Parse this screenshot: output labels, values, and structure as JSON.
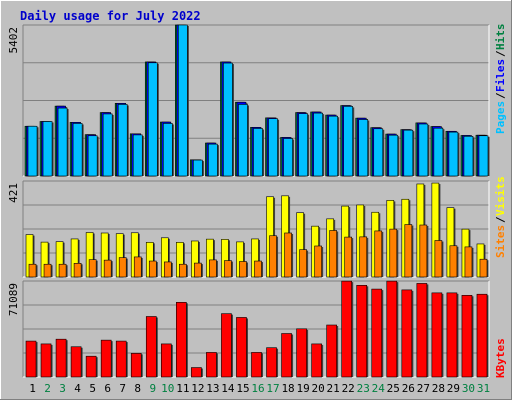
{
  "title": "Daily usage for July 2022",
  "colors": {
    "frame": "#c0c0c0",
    "plot_bg": "#c0c0c0",
    "title": "#0000cc",
    "hits": "#008040",
    "files": "#0000ff",
    "pages": "#00c0ff",
    "visits": "#ffff00",
    "sites": "#ff8000",
    "kbytes": "#ff0000",
    "weekend_day": "#008040",
    "weekday": "#000000"
  },
  "right_labels": {
    "top": [
      "Pages",
      "/",
      "Files",
      "/",
      "Hits"
    ],
    "middle": [
      "Sites",
      "/",
      "Visits"
    ],
    "bottom": [
      "KBytes"
    ]
  },
  "chart_data": {
    "type": "bar",
    "title": "Daily usage for July 2022",
    "categories": [
      "1",
      "2",
      "3",
      "4",
      "5",
      "6",
      "7",
      "8",
      "9",
      "10",
      "11",
      "12",
      "13",
      "14",
      "15",
      "16",
      "17",
      "18",
      "19",
      "20",
      "21",
      "22",
      "23",
      "24",
      "25",
      "26",
      "27",
      "28",
      "29",
      "30",
      "31"
    ],
    "weekend_days": [
      "2",
      "3",
      "9",
      "10",
      "16",
      "17",
      "23",
      "24",
      "30",
      "31"
    ],
    "panels": [
      {
        "name": "hits_files_pages",
        "max_label": "5402",
        "ylim": [
          0,
          5402
        ],
        "series": [
          {
            "name": "Hits",
            "values": [
              1780,
              1950,
              2500,
              1920,
              1480,
              2270,
              2600,
              1510,
              4080,
              1930,
              5402,
              580,
              1180,
              4080,
              2640,
              1740,
              2080,
              1380,
              2270,
              2290,
              2180,
              2520,
              2070,
              1730,
              1500,
              1660,
              1900,
              1770,
              1600,
              1450,
              1460
            ]
          },
          {
            "name": "Files",
            "values": [
              1780,
              1950,
              2500,
              1920,
              1480,
              2270,
              2600,
              1510,
              4080,
              1930,
              5402,
              580,
              1180,
              4080,
              2640,
              1740,
              2080,
              1380,
              2270,
              2290,
              2180,
              2520,
              2070,
              1730,
              1500,
              1660,
              1900,
              1770,
              1600,
              1450,
              1460
            ]
          },
          {
            "name": "Pages",
            "values": [
              1780,
              1950,
              2430,
              1880,
              1440,
              2220,
              2560,
              1470,
              4050,
              1880,
              5402,
              570,
              1140,
              4040,
              2560,
              1700,
              2050,
              1340,
              2230,
              2250,
              2140,
              2490,
              2020,
              1690,
              1460,
              1640,
              1860,
              1710,
              1570,
              1420,
              1440
            ]
          }
        ]
      },
      {
        "name": "visits_sites",
        "max_label": "421",
        "ylim": [
          0,
          421
        ],
        "series": [
          {
            "name": "Visits",
            "values": [
              186,
              153,
              155,
              167,
              195,
              193,
              190,
              194,
              152,
              172,
              152,
              158,
              166,
              165,
              154,
              167,
              352,
              356,
              282,
              223,
              255,
              311,
              316,
              284,
              336,
              341,
              408,
              412,
              304,
              210,
              145
            ]
          },
          {
            "name": "Sites",
            "values": [
              56,
              56,
              56,
              60,
              76,
              74,
              85,
              88,
              70,
              66,
              56,
              61,
              75,
              72,
              68,
              70,
              181,
              193,
              120,
              136,
              204,
              175,
              176,
              202,
              210,
              230,
              228,
              160,
              137,
              132,
              78
            ]
          }
        ]
      },
      {
        "name": "kbytes",
        "max_label": "71089",
        "ylim": [
          0,
          71089
        ],
        "series": [
          {
            "name": "KBytes",
            "values": [
              26600,
              24500,
              28000,
              22400,
              15400,
              27300,
              26600,
              17500,
              44800,
              24500,
              55300,
              7000,
              18200,
              46900,
              44100,
              18200,
              21700,
              32200,
              35700,
              24500,
              38500,
              71000,
              67900,
              65100,
              71000,
              64500,
              69300,
              62300,
              62300,
              60500,
              61300
            ]
          }
        ]
      }
    ]
  }
}
